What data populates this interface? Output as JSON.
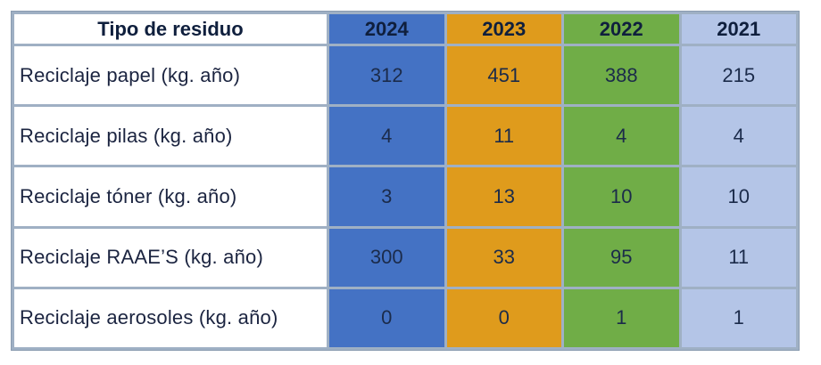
{
  "table": {
    "header": {
      "label": "Tipo de residuo",
      "years": [
        "2024",
        "2023",
        "2022",
        "2021"
      ]
    },
    "rows": [
      {
        "label": "Reciclaje papel (kg. año)",
        "values": [
          "312",
          "451",
          "388",
          "215"
        ]
      },
      {
        "label": "Reciclaje pilas (kg. año)",
        "values": [
          "4",
          "11",
          "4",
          "4"
        ]
      },
      {
        "label": "Reciclaje tóner (kg. año)",
        "values": [
          "3",
          "13",
          "10",
          "10"
        ]
      },
      {
        "label": "Reciclaje RAAE’S (kg. año)",
        "values": [
          "300",
          "33",
          "95",
          "11"
        ]
      },
      {
        "label": "Reciclaje aerosoles (kg. año)",
        "values": [
          "0",
          "0",
          "1",
          "1"
        ]
      }
    ],
    "colors": {
      "2024": "#4472c4",
      "2023": "#df9b1c",
      "2022": "#70ad47",
      "2021": "#b4c5e7"
    }
  }
}
